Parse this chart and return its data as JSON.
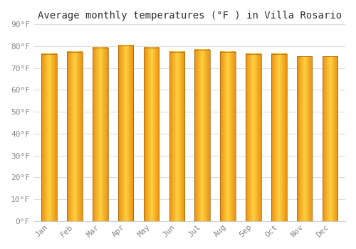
{
  "title": "Average monthly temperatures (°F ) in Villa Rosario",
  "months": [
    "Jan",
    "Feb",
    "Mar",
    "Apr",
    "May",
    "Jun",
    "Jul",
    "Aug",
    "Sep",
    "Oct",
    "Nov",
    "Dec"
  ],
  "values": [
    76.5,
    77.5,
    79.5,
    80.5,
    79.5,
    77.5,
    78.5,
    77.5,
    76.5,
    76.5,
    75.5,
    75.5
  ],
  "bar_color_light": "#FFD040",
  "bar_color_dark": "#E89010",
  "bar_edge_color": "#A06010",
  "background_color": "#FFFFFF",
  "plot_bg_color": "#FFFFFF",
  "ylim": [
    0,
    90
  ],
  "ytick_step": 10,
  "grid_color": "#DDDDDD",
  "title_fontsize": 10,
  "tick_fontsize": 8,
  "tick_label_color": "#888888",
  "bar_width": 0.6
}
